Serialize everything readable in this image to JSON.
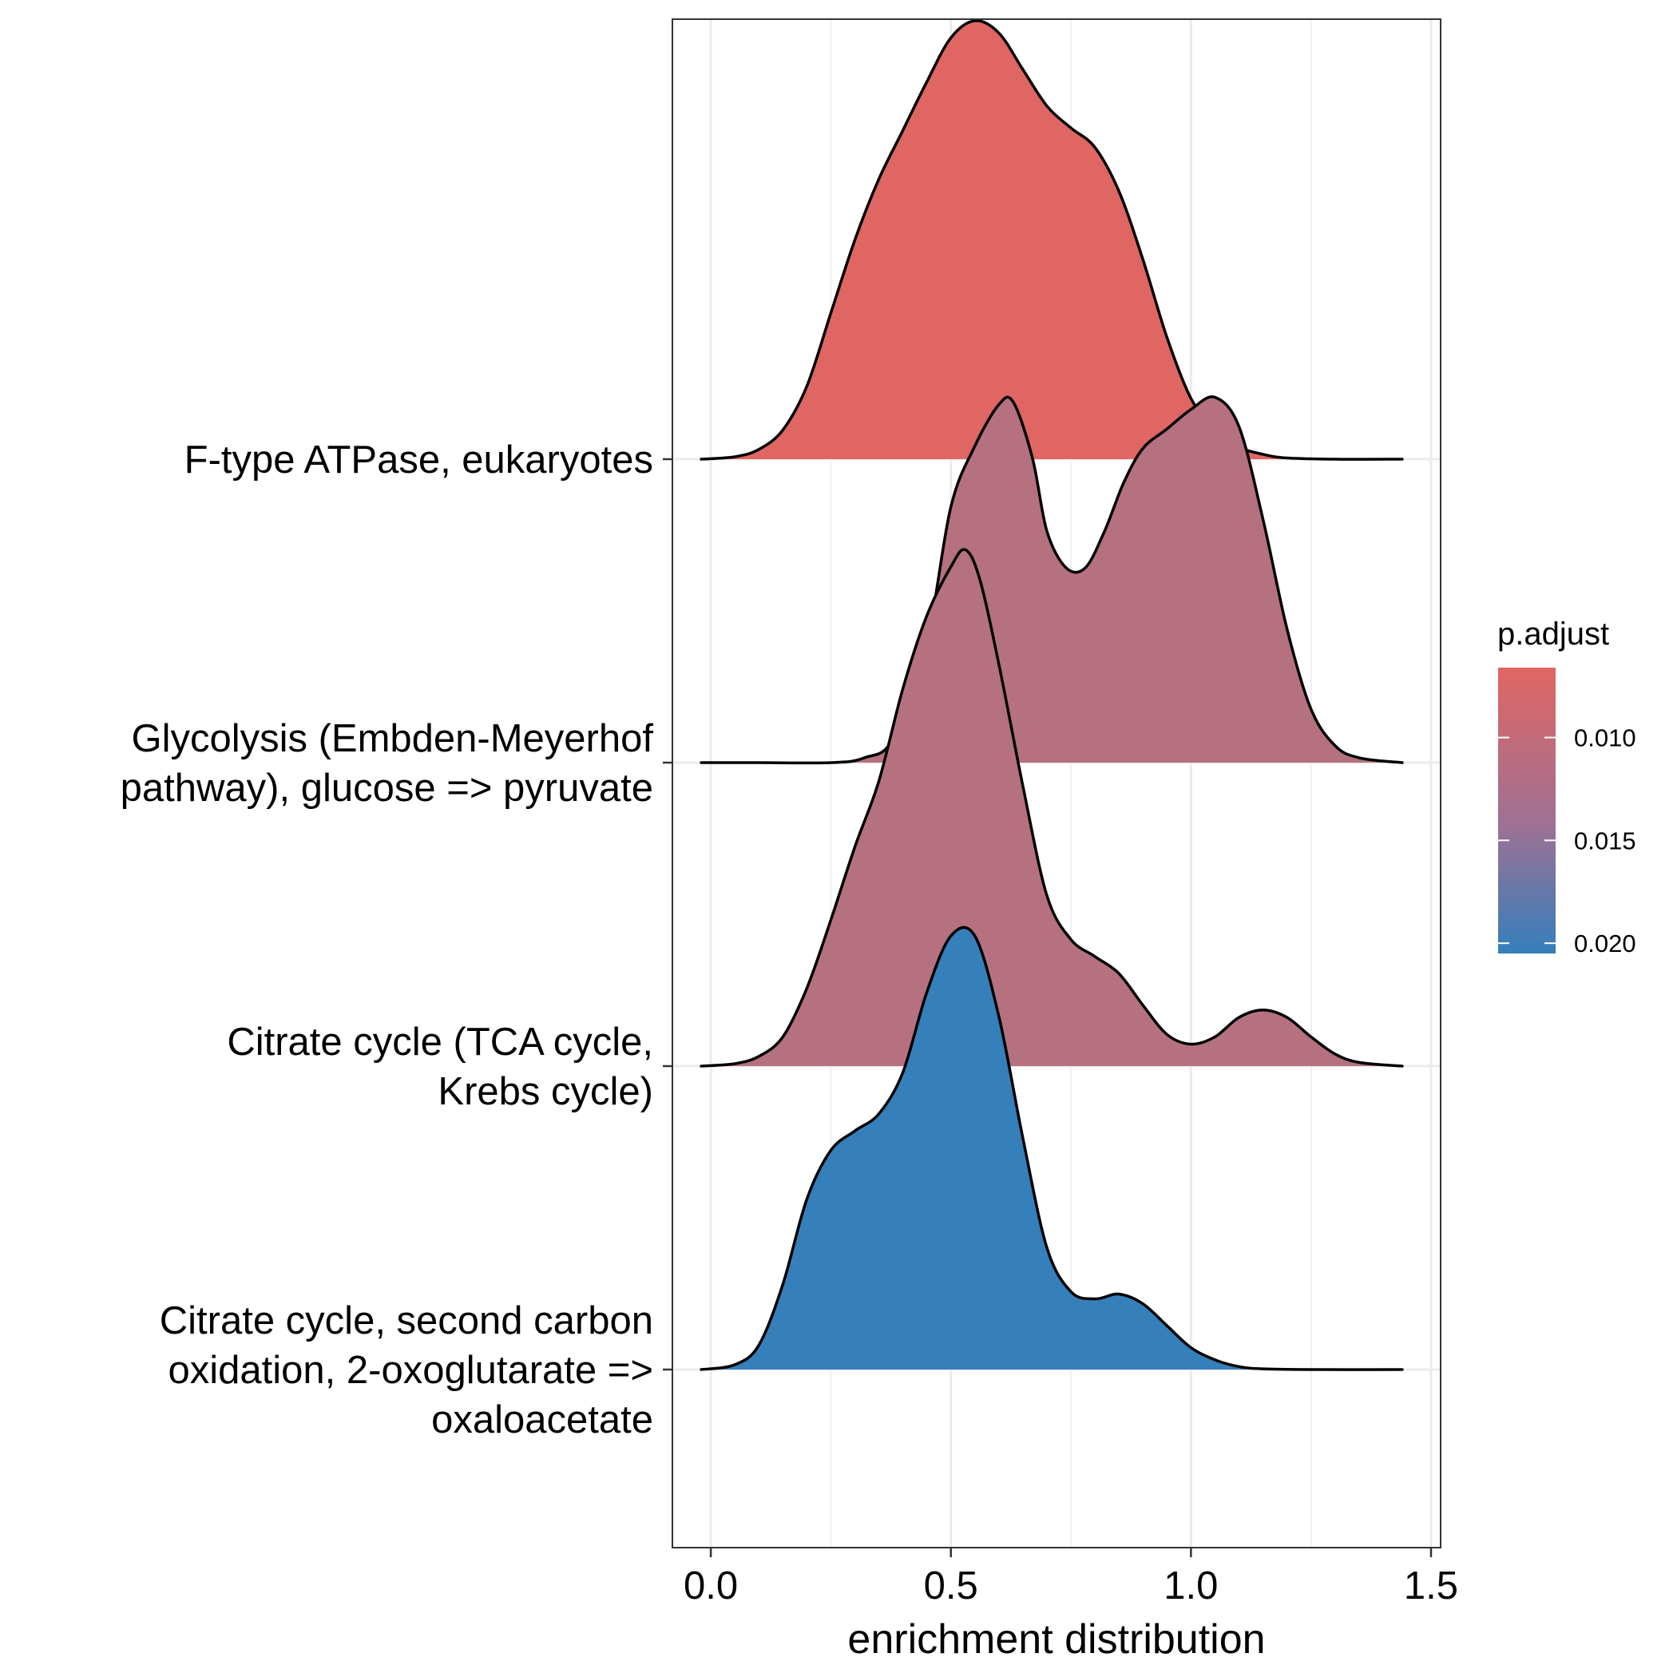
{
  "chart_data": {
    "type": "ridgeline",
    "xlabel": "enrichment distribution",
    "ylabel": "",
    "xlim": [
      -0.08,
      1.52
    ],
    "x_ticks": [
      0.0,
      0.5,
      1.0,
      1.5
    ],
    "x_tick_labels": [
      "0.0",
      "0.5",
      "1.0",
      "1.5"
    ],
    "grid": true,
    "categories": [
      "F-type ATPase, eukaryotes",
      "Glycolysis (Embden-Meyerhof pathway), glucose => pyruvate",
      "Citrate cycle (TCA cycle, Krebs cycle)",
      "Citrate cycle, second carbon oxidation, 2-oxoglutarate => oxaloacetate"
    ],
    "category_lines": [
      [
        "F-type ATPase, eukaryotes"
      ],
      [
        "Glycolysis (Embden-Meyerhof",
        "pathway), glucose => pyruvate"
      ],
      [
        "Citrate cycle (TCA cycle,",
        "Krebs cycle)"
      ],
      [
        "Citrate cycle, second carbon",
        "oxidation, 2-oxoglutarate =>",
        "oxaloacetate"
      ]
    ],
    "series": [
      {
        "category": "F-type ATPase, eukaryotes",
        "p_adjust": 0.0066,
        "color": "#e06663",
        "density": [
          [
            -0.02,
            0.0
          ],
          [
            0.05,
            0.01
          ],
          [
            0.1,
            0.04
          ],
          [
            0.15,
            0.12
          ],
          [
            0.2,
            0.3
          ],
          [
            0.25,
            0.6
          ],
          [
            0.3,
            0.9
          ],
          [
            0.35,
            1.15
          ],
          [
            0.4,
            1.35
          ],
          [
            0.45,
            1.55
          ],
          [
            0.5,
            1.73
          ],
          [
            0.55,
            1.8
          ],
          [
            0.6,
            1.75
          ],
          [
            0.65,
            1.6
          ],
          [
            0.7,
            1.45
          ],
          [
            0.75,
            1.36
          ],
          [
            0.8,
            1.28
          ],
          [
            0.85,
            1.1
          ],
          [
            0.9,
            0.82
          ],
          [
            0.95,
            0.5
          ],
          [
            1.0,
            0.25
          ],
          [
            1.05,
            0.12
          ],
          [
            1.1,
            0.05
          ],
          [
            1.15,
            0.02
          ],
          [
            1.2,
            0.005
          ],
          [
            1.3,
            0.0
          ],
          [
            1.44,
            0.0
          ]
        ]
      },
      {
        "category": "Glycolysis (Embden-Meyerhof pathway), glucose => pyruvate",
        "p_adjust": 0.011,
        "color": "#b57180",
        "density": [
          [
            -0.02,
            0.0
          ],
          [
            0.1,
            0.0
          ],
          [
            0.25,
            0.0
          ],
          [
            0.32,
            0.02
          ],
          [
            0.38,
            0.1
          ],
          [
            0.45,
            0.5
          ],
          [
            0.5,
            1.05
          ],
          [
            0.55,
            1.3
          ],
          [
            0.6,
            1.47
          ],
          [
            0.63,
            1.48
          ],
          [
            0.67,
            1.25
          ],
          [
            0.7,
            0.95
          ],
          [
            0.74,
            0.8
          ],
          [
            0.78,
            0.8
          ],
          [
            0.82,
            0.95
          ],
          [
            0.86,
            1.15
          ],
          [
            0.9,
            1.29
          ],
          [
            0.95,
            1.37
          ],
          [
            1.0,
            1.45
          ],
          [
            1.05,
            1.5
          ],
          [
            1.1,
            1.38
          ],
          [
            1.15,
            1.0
          ],
          [
            1.2,
            0.55
          ],
          [
            1.25,
            0.22
          ],
          [
            1.3,
            0.07
          ],
          [
            1.35,
            0.02
          ],
          [
            1.44,
            0.0
          ]
        ]
      },
      {
        "category": "Citrate cycle (TCA cycle, Krebs cycle)",
        "p_adjust": 0.011,
        "color": "#b57180",
        "density": [
          [
            -0.02,
            0.0
          ],
          [
            0.05,
            0.01
          ],
          [
            0.1,
            0.04
          ],
          [
            0.15,
            0.12
          ],
          [
            0.2,
            0.32
          ],
          [
            0.25,
            0.6
          ],
          [
            0.3,
            0.9
          ],
          [
            0.35,
            1.17
          ],
          [
            0.4,
            1.55
          ],
          [
            0.45,
            1.85
          ],
          [
            0.5,
            2.05
          ],
          [
            0.53,
            2.12
          ],
          [
            0.56,
            2.0
          ],
          [
            0.6,
            1.65
          ],
          [
            0.65,
            1.15
          ],
          [
            0.7,
            0.7
          ],
          [
            0.75,
            0.52
          ],
          [
            0.8,
            0.45
          ],
          [
            0.85,
            0.38
          ],
          [
            0.9,
            0.25
          ],
          [
            0.95,
            0.13
          ],
          [
            1.0,
            0.09
          ],
          [
            1.05,
            0.12
          ],
          [
            1.1,
            0.2
          ],
          [
            1.15,
            0.23
          ],
          [
            1.2,
            0.2
          ],
          [
            1.25,
            0.12
          ],
          [
            1.3,
            0.05
          ],
          [
            1.35,
            0.015
          ],
          [
            1.44,
            0.0
          ]
        ]
      },
      {
        "category": "Citrate cycle, second carbon oxidation, 2-oxoglutarate => oxaloacetate",
        "p_adjust": 0.0205,
        "color": "#357fbb",
        "density": [
          [
            -0.02,
            0.0
          ],
          [
            0.05,
            0.02
          ],
          [
            0.1,
            0.1
          ],
          [
            0.15,
            0.35
          ],
          [
            0.2,
            0.7
          ],
          [
            0.25,
            0.9
          ],
          [
            0.3,
            0.98
          ],
          [
            0.35,
            1.05
          ],
          [
            0.4,
            1.22
          ],
          [
            0.45,
            1.55
          ],
          [
            0.5,
            1.78
          ],
          [
            0.55,
            1.78
          ],
          [
            0.6,
            1.45
          ],
          [
            0.65,
            0.95
          ],
          [
            0.7,
            0.5
          ],
          [
            0.75,
            0.32
          ],
          [
            0.8,
            0.29
          ],
          [
            0.85,
            0.31
          ],
          [
            0.9,
            0.27
          ],
          [
            0.95,
            0.18
          ],
          [
            1.0,
            0.09
          ],
          [
            1.05,
            0.04
          ],
          [
            1.1,
            0.012
          ],
          [
            1.15,
            0.003
          ],
          [
            1.25,
            0.0
          ],
          [
            1.44,
            0.0
          ]
        ]
      }
    ],
    "legend": {
      "title": "p.adjust",
      "placement": "right",
      "range": [
        0.0066,
        0.0205
      ],
      "color_low": "#e06663",
      "color_mid": "#9e7194",
      "color_high": "#357fbb",
      "ticks": [
        0.01,
        0.015,
        0.02
      ],
      "tick_labels": [
        "0.010",
        "0.015",
        "0.020"
      ]
    }
  }
}
